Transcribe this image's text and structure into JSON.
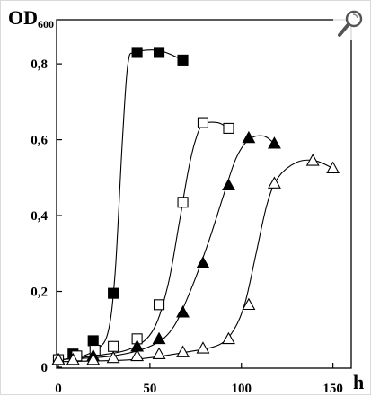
{
  "ui": {
    "zoom_icon": "magnifier-icon"
  },
  "chart_data": {
    "type": "scatter",
    "title": "",
    "ylabel_main": "OD",
    "ylabel_sub": "600",
    "xlabel": "h",
    "xlim": [
      0,
      160
    ],
    "ylim": [
      0,
      0.9
    ],
    "x_ticks": [
      0,
      50,
      100,
      150
    ],
    "x_tick_labels": [
      "0",
      "50",
      "100",
      "150"
    ],
    "y_ticks": [
      0,
      0.2,
      0.4,
      0.6,
      0.8
    ],
    "y_tick_labels": [
      "0",
      "0,2",
      "0,4",
      "0,6",
      "0,8"
    ],
    "grid": false,
    "legend": "none",
    "series": [
      {
        "marker": "square",
        "filled": true,
        "points": [
          [
            0,
            0.02
          ],
          [
            8,
            0.035
          ],
          [
            19,
            0.07
          ],
          [
            30,
            0.195
          ],
          [
            43,
            0.83
          ],
          [
            55,
            0.83
          ],
          [
            68,
            0.81
          ]
        ]
      },
      {
        "marker": "square",
        "filled": false,
        "points": [
          [
            0,
            0.02
          ],
          [
            10,
            0.03
          ],
          [
            20,
            0.045
          ],
          [
            30,
            0.055
          ],
          [
            43,
            0.075
          ],
          [
            55,
            0.165
          ],
          [
            68,
            0.435
          ],
          [
            79,
            0.645
          ],
          [
            93,
            0.63
          ]
        ]
      },
      {
        "marker": "triangle",
        "filled": true,
        "points": [
          [
            0,
            0.02
          ],
          [
            19,
            0.03
          ],
          [
            43,
            0.055
          ],
          [
            55,
            0.075
          ],
          [
            68,
            0.145
          ],
          [
            79,
            0.275
          ],
          [
            93,
            0.48
          ],
          [
            104,
            0.605
          ],
          [
            118,
            0.59
          ]
        ]
      },
      {
        "marker": "triangle",
        "filled": false,
        "points": [
          [
            0,
            0.02
          ],
          [
            8,
            0.02
          ],
          [
            19,
            0.02
          ],
          [
            30,
            0.025
          ],
          [
            43,
            0.03
          ],
          [
            55,
            0.035
          ],
          [
            68,
            0.04
          ],
          [
            79,
            0.05
          ],
          [
            93,
            0.075
          ],
          [
            104,
            0.165
          ],
          [
            118,
            0.485
          ],
          [
            139,
            0.545
          ],
          [
            150,
            0.525
          ]
        ]
      }
    ],
    "curves": [
      [
        [
          0,
          0.02
        ],
        [
          10,
          0.025
        ],
        [
          20,
          0.045
        ],
        [
          27,
          0.09
        ],
        [
          31,
          0.25
        ],
        [
          35,
          0.6
        ],
        [
          38,
          0.8
        ],
        [
          42,
          0.83
        ],
        [
          55,
          0.835
        ],
        [
          68,
          0.81
        ]
      ],
      [
        [
          0,
          0.02
        ],
        [
          20,
          0.03
        ],
        [
          40,
          0.05
        ],
        [
          52,
          0.1
        ],
        [
          60,
          0.22
        ],
        [
          66,
          0.38
        ],
        [
          71,
          0.52
        ],
        [
          75,
          0.6
        ],
        [
          79,
          0.64
        ],
        [
          87,
          0.645
        ],
        [
          93,
          0.63
        ]
      ],
      [
        [
          0,
          0.02
        ],
        [
          30,
          0.03
        ],
        [
          50,
          0.055
        ],
        [
          62,
          0.1
        ],
        [
          72,
          0.2
        ],
        [
          82,
          0.33
        ],
        [
          90,
          0.45
        ],
        [
          97,
          0.55
        ],
        [
          104,
          0.6
        ],
        [
          112,
          0.61
        ],
        [
          118,
          0.59
        ]
      ],
      [
        [
          0,
          0.015
        ],
        [
          40,
          0.02
        ],
        [
          70,
          0.04
        ],
        [
          88,
          0.06
        ],
        [
          96,
          0.1
        ],
        [
          102,
          0.17
        ],
        [
          108,
          0.3
        ],
        [
          114,
          0.43
        ],
        [
          120,
          0.5
        ],
        [
          130,
          0.54
        ],
        [
          140,
          0.545
        ],
        [
          150,
          0.525
        ]
      ]
    ]
  }
}
